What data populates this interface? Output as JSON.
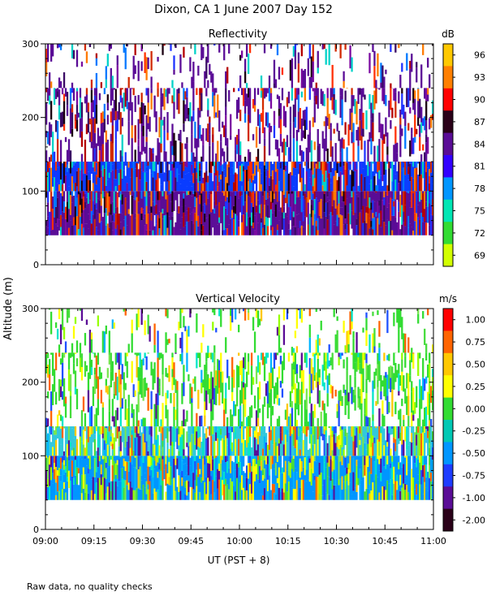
{
  "title": "Dixon, CA  1 June 2007  Day 152",
  "footnote": "Raw data, no quality checks",
  "shared_ylabel": "Altitude (m)",
  "shared_xlabel": "UT  (PST + 8)",
  "chart_data": [
    {
      "type": "heatmap",
      "title": "Reflectivity",
      "units": "dB",
      "x_ticks": [
        "09:00",
        "09:15",
        "09:30",
        "09:45",
        "10:00",
        "10:15",
        "10:30",
        "10:45",
        "11:00"
      ],
      "x_range_minutes": [
        0,
        120
      ],
      "ylim": [
        0,
        300
      ],
      "y_ticks": [
        0,
        100,
        200,
        300
      ],
      "data_altitude_range": [
        40,
        300
      ],
      "colorbar_labels": [
        "96",
        "93",
        "90",
        "87",
        "84",
        "81",
        "78",
        "75",
        "72",
        "69"
      ],
      "colorbar_colors": [
        "#ffc800",
        "#ff7f00",
        "#ff0000",
        "#2a0018",
        "#5a0c96",
        "#3200ff",
        "#0096ff",
        "#00e6b4",
        "#32dc32",
        "#d2ff00"
      ],
      "low_level_color": "#5a0c96",
      "mid_level_color": "#0a3cff",
      "upper_color": "#5a0c96",
      "hot_color": "#ff3000",
      "texture_colors": [
        "#3a0a64",
        "#7a0aa0",
        "#1e32ff",
        "#0078ff",
        "#d22a00",
        "#1a0010",
        "#00d2c8",
        "#b40000",
        "#ff7a00"
      ]
    },
    {
      "type": "heatmap",
      "title": "Vertical Velocity",
      "units": "m/s",
      "x_ticks": [
        "09:00",
        "09:15",
        "09:30",
        "09:45",
        "10:00",
        "10:15",
        "10:30",
        "10:45",
        "11:00"
      ],
      "x_range_minutes": [
        0,
        120
      ],
      "ylim": [
        0,
        300
      ],
      "y_ticks": [
        0,
        100,
        200,
        300
      ],
      "data_altitude_range": [
        40,
        300
      ],
      "colorbar_labels": [
        "1.00",
        "0.75",
        "0.50",
        "0.25",
        "0.00",
        "-0.25",
        "-0.50",
        "-0.75",
        "-1.00",
        "-2.00"
      ],
      "colorbar_colors": [
        "#ff0000",
        "#ff6400",
        "#ffc800",
        "#ffff00",
        "#32dc32",
        "#00c8b4",
        "#0096ff",
        "#1e3cff",
        "#5a0c96",
        "#2a0018"
      ],
      "low_level_color": "#0096ff",
      "mid_level_color": "#32c8dc",
      "upper_color": "#32dc32",
      "hot_color": "#ffff00",
      "texture_colors": [
        "#00b4ff",
        "#00e6c8",
        "#46dc3c",
        "#ffff00",
        "#1e50ff",
        "#78e650",
        "#ffc800",
        "#5a0c96",
        "#ff6400",
        "#96ff00"
      ]
    }
  ]
}
